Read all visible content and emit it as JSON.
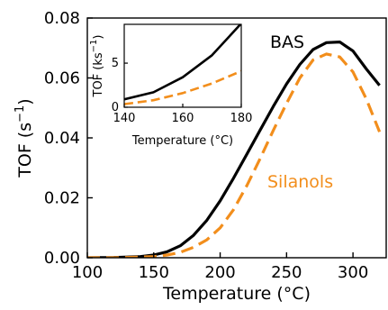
{
  "chart_data": [
    {
      "type": "line",
      "xlabel": "Temperature (°C)",
      "ylabel": "TOF (s",
      "ylabel_exp": "−1",
      "ylabel_close": ")",
      "xlim": [
        100,
        325
      ],
      "ylim": [
        0,
        0.08
      ],
      "xticks": [
        100,
        150,
        200,
        250,
        300
      ],
      "yticks": [
        0,
        0.02,
        0.04,
        0.06,
        0.08
      ],
      "xtick_labels": [
        "100",
        "150",
        "200",
        "250",
        "300"
      ],
      "ytick_labels": [
        "0.00",
        "0.02",
        "0.04",
        "0.06",
        "0.08"
      ],
      "grid": false,
      "legend": "none",
      "series": [
        {
          "name": "BAS",
          "color": "#000000",
          "style": "solid",
          "x": [
            100,
            120,
            140,
            150,
            160,
            170,
            180,
            190,
            200,
            210,
            220,
            230,
            240,
            250,
            260,
            270,
            280,
            290,
            300,
            310,
            320
          ],
          "y": [
            0.0,
            0.0001,
            0.0004,
            0.0009,
            0.002,
            0.004,
            0.0075,
            0.0125,
            0.019,
            0.0265,
            0.0345,
            0.0425,
            0.0505,
            0.058,
            0.0645,
            0.0695,
            0.0718,
            0.072,
            0.069,
            0.063,
            0.0575
          ]
        },
        {
          "name": "Silanols",
          "color": "#f28e1c",
          "style": "dashed",
          "x": [
            100,
            120,
            140,
            150,
            160,
            170,
            180,
            190,
            200,
            210,
            220,
            230,
            240,
            250,
            260,
            270,
            280,
            290,
            300,
            310,
            320
          ],
          "y": [
            0.0,
            0.0,
            0.0002,
            0.0004,
            0.0009,
            0.0018,
            0.0035,
            0.006,
            0.01,
            0.016,
            0.024,
            0.033,
            0.0425,
            0.0515,
            0.06,
            0.066,
            0.068,
            0.067,
            0.062,
            0.053,
            0.042
          ]
        }
      ]
    },
    {
      "type": "line",
      "xlabel": "Temperature (°C)",
      "ylabel": "TOF (ks",
      "ylabel_exp": "−1",
      "ylabel_close": ")",
      "xlim": [
        140,
        180
      ],
      "ylim": [
        0,
        9.4
      ],
      "xticks": [
        140,
        160,
        180
      ],
      "yticks": [
        0,
        5
      ],
      "xtick_labels": [
        "140",
        "160",
        "180"
      ],
      "ytick_labels": [
        "0",
        "5"
      ],
      "grid": false,
      "legend": "none",
      "series": [
        {
          "name": "BAS",
          "color": "#000000",
          "style": "solid",
          "x": [
            140,
            150,
            160,
            170,
            180
          ],
          "y": [
            0.9,
            1.7,
            3.4,
            5.9,
            9.5
          ]
        },
        {
          "name": "Silanols",
          "color": "#f28e1c",
          "style": "dashed",
          "x": [
            140,
            150,
            160,
            170,
            180
          ],
          "y": [
            0.35,
            0.8,
            1.6,
            2.7,
            4.1
          ]
        }
      ]
    }
  ]
}
